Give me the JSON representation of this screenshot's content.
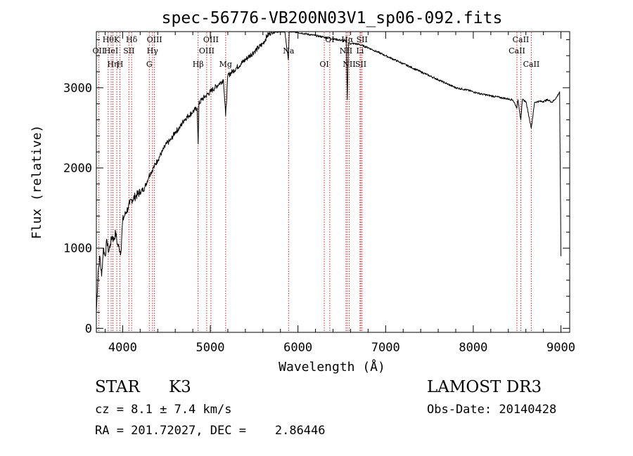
{
  "chart_data": {
    "type": "line",
    "title": "spec-56776-VB200N03V1_sp06-092.fits",
    "xlabel": "Wavelength (Å)",
    "ylabel": "Flux (relative)",
    "xlim": [
      3700,
      9100
    ],
    "ylim": [
      -50,
      3700
    ],
    "xticks": [
      4000,
      5000,
      6000,
      7000,
      8000,
      9000
    ],
    "yticks": [
      0,
      1000,
      2000,
      3000
    ],
    "series": [
      {
        "name": "flux",
        "x": [
          3700,
          3720,
          3740,
          3760,
          3780,
          3800,
          3820,
          3840,
          3860,
          3880,
          3900,
          3920,
          3940,
          3960,
          3980,
          4000,
          4020,
          4040,
          4060,
          4080,
          4100,
          4150,
          4200,
          4250,
          4300,
          4350,
          4400,
          4450,
          4500,
          4550,
          4600,
          4650,
          4700,
          4750,
          4800,
          4850,
          4861,
          4870,
          4900,
          4950,
          5000,
          5050,
          5100,
          5150,
          5175,
          5200,
          5250,
          5300,
          5350,
          5400,
          5450,
          5500,
          5550,
          5600,
          5650,
          5700,
          5750,
          5800,
          5850,
          5890,
          5900,
          5950,
          6000,
          6050,
          6100,
          6150,
          6200,
          6250,
          6300,
          6350,
          6400,
          6450,
          6500,
          6550,
          6563,
          6575,
          6600,
          6650,
          6700,
          6800,
          6900,
          7000,
          7100,
          7200,
          7300,
          7400,
          7500,
          7600,
          7700,
          7800,
          7900,
          8000,
          8100,
          8200,
          8300,
          8400,
          8450,
          8498,
          8510,
          8542,
          8560,
          8600,
          8662,
          8700,
          8750,
          8800,
          8850,
          8900,
          8950,
          8985,
          9000
        ],
        "y": [
          200,
          700,
          900,
          650,
          1000,
          900,
          1100,
          950,
          1050,
          1150,
          1100,
          1200,
          1050,
          1000,
          950,
          1350,
          1400,
          1450,
          1500,
          1550,
          1600,
          1650,
          1700,
          1750,
          1900,
          2000,
          2100,
          2200,
          2300,
          2350,
          2450,
          2500,
          2600,
          2650,
          2700,
          2750,
          2300,
          2800,
          2850,
          2900,
          2950,
          3000,
          3050,
          3100,
          2650,
          3150,
          3200,
          3250,
          3300,
          3350,
          3400,
          3450,
          3500,
          3550,
          3650,
          3700,
          3720,
          3720,
          3700,
          3350,
          3700,
          3700,
          3690,
          3680,
          3670,
          3660,
          3650,
          3640,
          3630,
          3620,
          3610,
          3600,
          3590,
          3580,
          2850,
          3560,
          3550,
          3550,
          3540,
          3500,
          3450,
          3400,
          3350,
          3300,
          3250,
          3200,
          3150,
          3100,
          3050,
          3000,
          2980,
          2950,
          2920,
          2900,
          2880,
          2860,
          2850,
          2750,
          2850,
          2600,
          2850,
          2830,
          2500,
          2820,
          2830,
          2830,
          2850,
          2820,
          2880,
          2950,
          900
        ]
      }
    ],
    "lines": [
      {
        "w": 3727,
        "label": "OII",
        "row": 1
      },
      {
        "w": 3835,
        "label": "Hθ",
        "row": 0
      },
      {
        "w": 3869,
        "label": "HeI",
        "row": 1
      },
      {
        "w": 3889,
        "label": "Hη",
        "row": 2
      },
      {
        "w": 3933,
        "label": "K",
        "row": 0
      },
      {
        "w": 3969,
        "label": "H",
        "row": 2
      },
      {
        "w": 4072,
        "label": "SII",
        "row": 1
      },
      {
        "w": 4102,
        "label": "Hδ",
        "row": 0
      },
      {
        "w": 4304,
        "label": "G",
        "row": 2
      },
      {
        "w": 4340,
        "label": "Hγ",
        "row": 1
      },
      {
        "w": 4363,
        "label": "OIII",
        "row": 0
      },
      {
        "w": 4861,
        "label": "Hβ",
        "row": 2
      },
      {
        "w": 4959,
        "label": "OIII",
        "row": 1
      },
      {
        "w": 5007,
        "label": "OIII",
        "row": 0
      },
      {
        "w": 5175,
        "label": "Mg",
        "row": 2
      },
      {
        "w": 5893,
        "label": "Na",
        "row": 1
      },
      {
        "w": 6300,
        "label": "OI",
        "row": 2
      },
      {
        "w": 6363,
        "label": "OI",
        "row": 0
      },
      {
        "w": 6548,
        "label": "NII",
        "row": 1
      },
      {
        "w": 6563,
        "label": "Hα",
        "row": 0
      },
      {
        "w": 6584,
        "label": "NII",
        "row": 2
      },
      {
        "w": 6708,
        "label": "Li",
        "row": 1
      },
      {
        "w": 6717,
        "label": "SII",
        "row": 2
      },
      {
        "w": 6731,
        "label": "SII",
        "row": 0
      },
      {
        "w": 8498,
        "label": "CaII",
        "row": 1
      },
      {
        "w": 8542,
        "label": "CaII",
        "row": 0
      },
      {
        "w": 8662,
        "label": "CaII",
        "row": 2
      }
    ]
  },
  "info": {
    "object_type": "STAR",
    "subclass": "K3",
    "survey": "LAMOST DR3",
    "cz": "cz = 8.1 ± 7.4 km/s",
    "obs_date": "Obs-Date: 20140428",
    "radec": "RA = 201.72027, DEC =    2.86446"
  }
}
